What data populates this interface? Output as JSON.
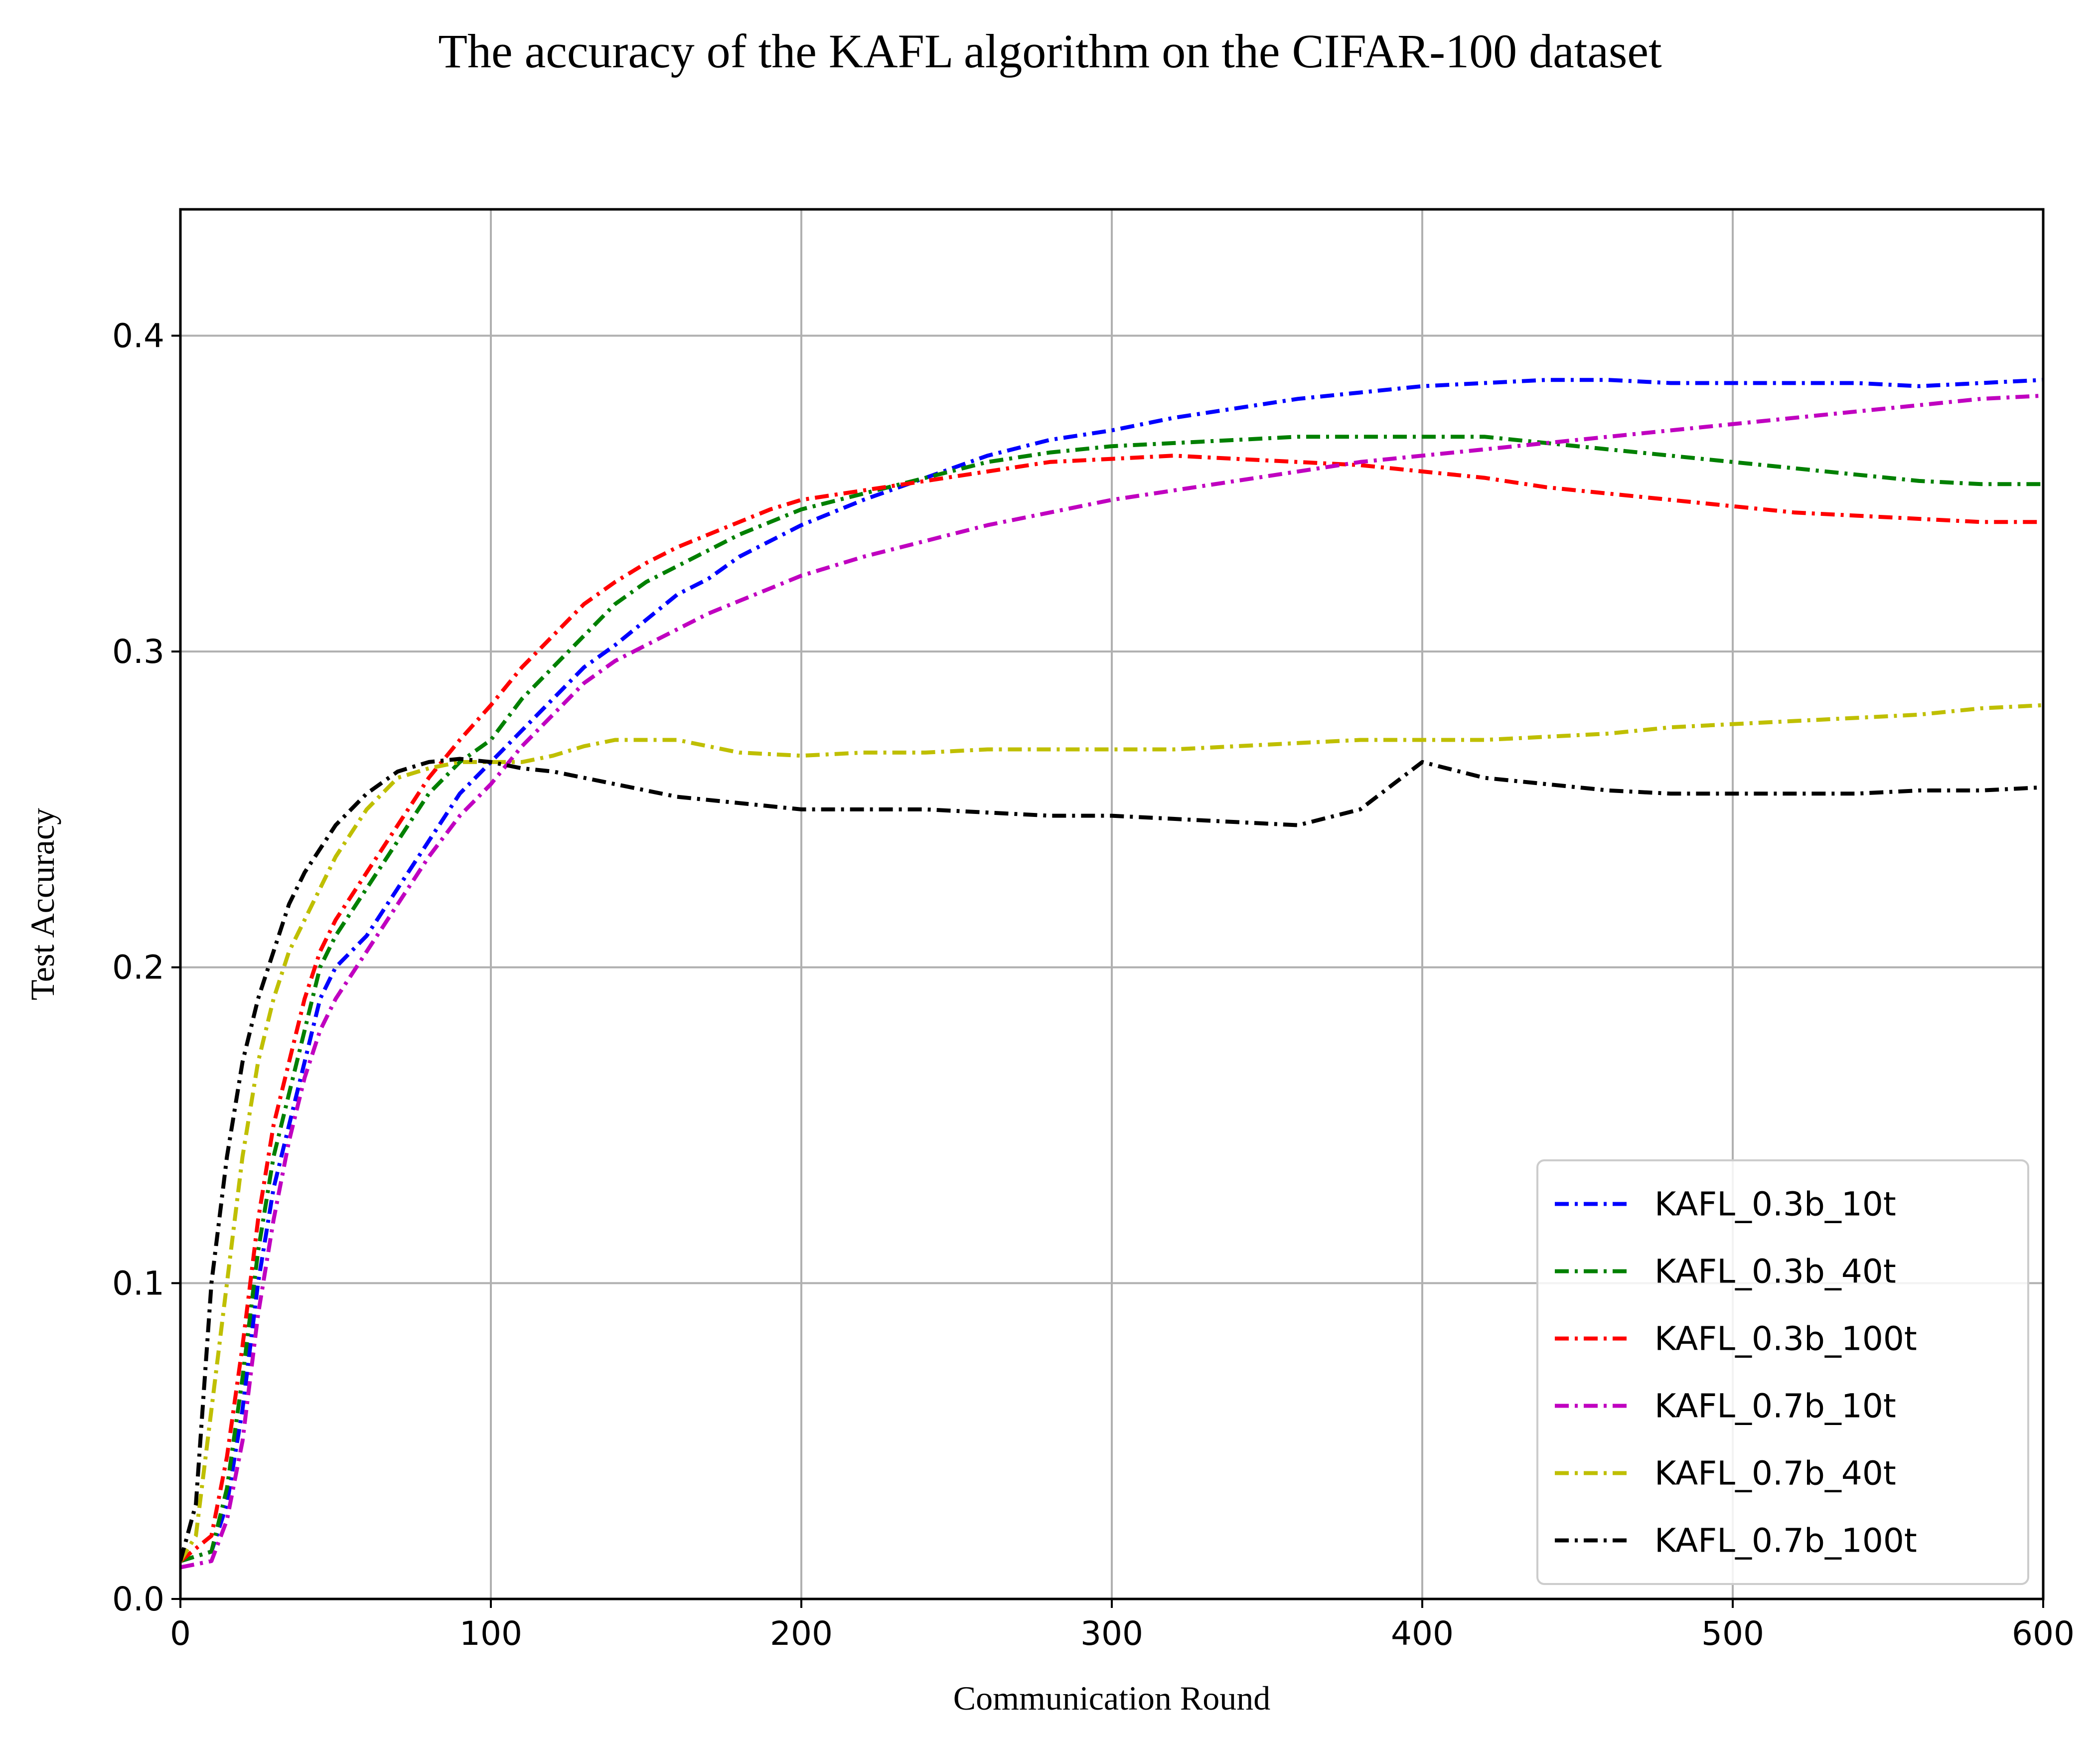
{
  "chart_data": {
    "type": "line",
    "title": "The accuracy of the KAFL algorithm on the CIFAR-100 dataset",
    "xlabel": "Communication Round",
    "ylabel": "Test Accuracy",
    "xlim": [
      0,
      600
    ],
    "ylim": [
      0,
      0.44
    ],
    "xticks": [
      0,
      100,
      200,
      300,
      400,
      500,
      600
    ],
    "xtick_labels": [
      "0",
      "100",
      "200",
      "300",
      "400",
      "500",
      "600"
    ],
    "yticks": [
      0,
      0.1,
      0.2,
      0.3,
      0.4
    ],
    "ytick_labels": [
      "0.0",
      "0.1",
      "0.2",
      "0.3",
      "0.4"
    ],
    "grid": true,
    "legend_position": "lower-right",
    "line_style": "dash-dot",
    "series": [
      {
        "name": "KAFL_0.3b_10t",
        "color": "#0000ff",
        "x": [
          0,
          10,
          15,
          20,
          25,
          30,
          35,
          40,
          45,
          50,
          60,
          70,
          80,
          90,
          100,
          110,
          120,
          130,
          140,
          150,
          160,
          170,
          180,
          190,
          200,
          220,
          240,
          260,
          280,
          300,
          320,
          340,
          360,
          380,
          400,
          420,
          440,
          460,
          480,
          500,
          520,
          540,
          560,
          580,
          600
        ],
        "y": [
          0.012,
          0.015,
          0.03,
          0.06,
          0.1,
          0.13,
          0.15,
          0.17,
          0.19,
          0.2,
          0.21,
          0.225,
          0.24,
          0.255,
          0.265,
          0.275,
          0.285,
          0.295,
          0.302,
          0.31,
          0.318,
          0.323,
          0.33,
          0.335,
          0.34,
          0.348,
          0.355,
          0.362,
          0.367,
          0.37,
          0.374,
          0.377,
          0.38,
          0.382,
          0.384,
          0.385,
          0.386,
          0.386,
          0.385,
          0.385,
          0.385,
          0.385,
          0.384,
          0.385,
          0.386
        ]
      },
      {
        "name": "KAFL_0.3b_40t",
        "color": "#008000",
        "x": [
          0,
          10,
          15,
          20,
          25,
          30,
          35,
          40,
          45,
          50,
          60,
          70,
          80,
          90,
          100,
          110,
          120,
          130,
          140,
          150,
          160,
          170,
          180,
          190,
          200,
          220,
          240,
          260,
          280,
          300,
          320,
          340,
          360,
          380,
          400,
          420,
          440,
          460,
          480,
          500,
          520,
          540,
          560,
          580,
          600
        ],
        "y": [
          0.012,
          0.015,
          0.035,
          0.07,
          0.11,
          0.14,
          0.16,
          0.18,
          0.2,
          0.21,
          0.225,
          0.24,
          0.255,
          0.265,
          0.272,
          0.285,
          0.295,
          0.305,
          0.315,
          0.322,
          0.327,
          0.332,
          0.337,
          0.341,
          0.345,
          0.35,
          0.355,
          0.36,
          0.363,
          0.365,
          0.366,
          0.367,
          0.368,
          0.368,
          0.368,
          0.368,
          0.366,
          0.364,
          0.362,
          0.36,
          0.358,
          0.356,
          0.354,
          0.353,
          0.353
        ]
      },
      {
        "name": "KAFL_0.3b_100t",
        "color": "#ff0000",
        "x": [
          0,
          10,
          15,
          20,
          25,
          30,
          35,
          40,
          45,
          50,
          60,
          70,
          80,
          90,
          100,
          110,
          120,
          130,
          140,
          150,
          160,
          170,
          180,
          190,
          200,
          220,
          240,
          260,
          280,
          300,
          320,
          340,
          360,
          380,
          400,
          420,
          440,
          460,
          480,
          500,
          520,
          540,
          560,
          580,
          600
        ],
        "y": [
          0.012,
          0.02,
          0.045,
          0.08,
          0.12,
          0.15,
          0.17,
          0.19,
          0.205,
          0.215,
          0.23,
          0.245,
          0.26,
          0.272,
          0.283,
          0.295,
          0.305,
          0.315,
          0.322,
          0.328,
          0.333,
          0.337,
          0.341,
          0.345,
          0.348,
          0.351,
          0.354,
          0.357,
          0.36,
          0.361,
          0.362,
          0.361,
          0.36,
          0.359,
          0.357,
          0.355,
          0.352,
          0.35,
          0.348,
          0.346,
          0.344,
          0.343,
          0.342,
          0.341,
          0.341
        ]
      },
      {
        "name": "KAFL_0.7b_10t",
        "color": "#c000c0",
        "x": [
          0,
          10,
          15,
          20,
          25,
          30,
          35,
          40,
          45,
          50,
          60,
          70,
          80,
          90,
          100,
          110,
          120,
          130,
          140,
          150,
          160,
          170,
          180,
          190,
          200,
          220,
          240,
          260,
          280,
          300,
          320,
          340,
          360,
          380,
          400,
          420,
          440,
          460,
          480,
          500,
          520,
          540,
          560,
          580,
          600
        ],
        "y": [
          0.01,
          0.012,
          0.025,
          0.05,
          0.09,
          0.12,
          0.145,
          0.165,
          0.18,
          0.19,
          0.205,
          0.22,
          0.235,
          0.248,
          0.258,
          0.27,
          0.28,
          0.29,
          0.297,
          0.302,
          0.307,
          0.312,
          0.316,
          0.32,
          0.324,
          0.33,
          0.335,
          0.34,
          0.344,
          0.348,
          0.351,
          0.354,
          0.357,
          0.36,
          0.362,
          0.364,
          0.366,
          0.368,
          0.37,
          0.372,
          0.374,
          0.376,
          0.378,
          0.38,
          0.381
        ]
      },
      {
        "name": "KAFL_0.7b_40t",
        "color": "#bfbf00",
        "x": [
          0,
          5,
          10,
          15,
          20,
          25,
          30,
          35,
          40,
          50,
          60,
          70,
          80,
          90,
          100,
          110,
          120,
          130,
          140,
          150,
          160,
          180,
          200,
          220,
          240,
          260,
          280,
          300,
          320,
          340,
          360,
          380,
          400,
          420,
          440,
          460,
          480,
          500,
          520,
          540,
          560,
          580,
          600
        ],
        "y": [
          0.012,
          0.02,
          0.06,
          0.1,
          0.14,
          0.17,
          0.19,
          0.205,
          0.215,
          0.235,
          0.25,
          0.26,
          0.263,
          0.265,
          0.265,
          0.265,
          0.267,
          0.27,
          0.272,
          0.272,
          0.272,
          0.268,
          0.267,
          0.268,
          0.268,
          0.269,
          0.269,
          0.269,
          0.269,
          0.27,
          0.271,
          0.272,
          0.272,
          0.272,
          0.273,
          0.274,
          0.276,
          0.277,
          0.278,
          0.279,
          0.28,
          0.282,
          0.283
        ]
      },
      {
        "name": "KAFL_0.7b_100t",
        "color": "#000000",
        "x": [
          0,
          5,
          10,
          15,
          20,
          25,
          30,
          35,
          40,
          50,
          60,
          70,
          80,
          90,
          100,
          110,
          120,
          130,
          140,
          150,
          160,
          180,
          200,
          220,
          240,
          260,
          280,
          300,
          320,
          340,
          360,
          380,
          400,
          420,
          440,
          460,
          480,
          500,
          520,
          540,
          560,
          580,
          600
        ],
        "y": [
          0.012,
          0.03,
          0.1,
          0.14,
          0.17,
          0.19,
          0.205,
          0.22,
          0.23,
          0.245,
          0.255,
          0.262,
          0.265,
          0.266,
          0.265,
          0.263,
          0.262,
          0.26,
          0.258,
          0.256,
          0.254,
          0.252,
          0.25,
          0.25,
          0.25,
          0.249,
          0.248,
          0.248,
          0.247,
          0.246,
          0.245,
          0.25,
          0.265,
          0.26,
          0.258,
          0.256,
          0.255,
          0.255,
          0.255,
          0.255,
          0.256,
          0.256,
          0.257
        ]
      }
    ],
    "annotations": []
  }
}
